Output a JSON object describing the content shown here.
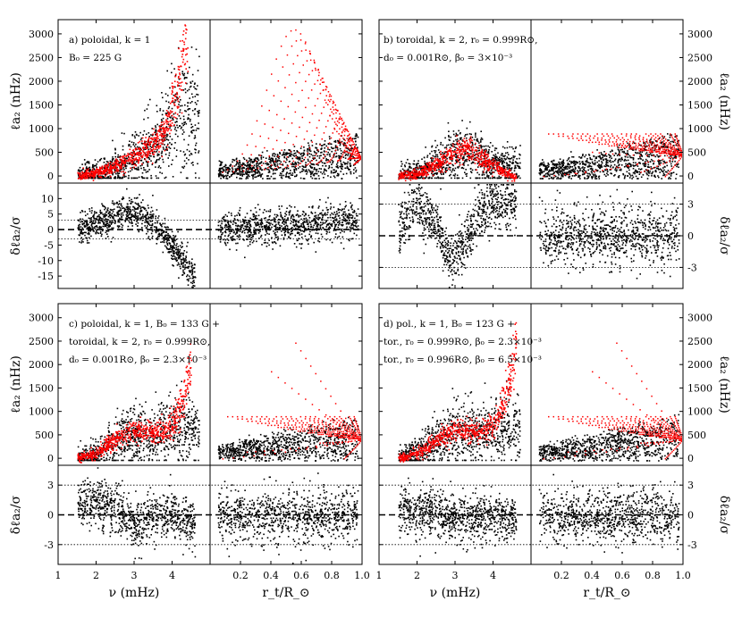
{
  "figure": {
    "x_tick_labels_nu": [
      "1",
      "2",
      "3",
      "4"
    ],
    "x_tick_labels_rt": [
      "0.2",
      "0.4",
      "0.6",
      "0.8",
      "1.0"
    ],
    "xlabel_nu": "ν (mHz)",
    "xlabel_rt": "r_t/R_⊙",
    "ylabel_top": "ℓa₂ (nHz)",
    "ylabel_bottom": "δℓa₂/σ"
  },
  "chart_data": [
    {
      "type": "scatter",
      "panel": "a",
      "annotation_lines": [
        "a) poloidal, k = 1",
        "B₀ = 225 G"
      ],
      "top": {
        "ylabel": "ℓa₂ (nHz)",
        "yticks": [
          0,
          500,
          1000,
          1500,
          2000,
          2500,
          3000
        ],
        "ylim": [
          -150,
          3300
        ],
        "xlim_nu": [
          1,
          5
        ],
        "xlim_rt": [
          0,
          1
        ],
        "series": [
          {
            "name": "",
            "color": "#000000"
          },
          {
            "name": "",
            "color": "#ff0000"
          }
        ],
        "model_nu_curve": {
          "x": [
            1.5,
            2.0,
            2.5,
            3.0,
            3.4,
            3.8,
            4.0,
            4.2,
            4.4
          ],
          "y": [
            10,
            80,
            220,
            420,
            620,
            950,
            1400,
            2200,
            3150
          ]
        }
      },
      "bottom": {
        "ylabel": "δℓa₂/σ",
        "yticks": [
          -15,
          -10,
          -5,
          0,
          5,
          10
        ],
        "ylim": [
          -19,
          15
        ],
        "reference_lines": {
          "dashed": 0,
          "dotted": [
            3,
            -3
          ]
        },
        "residual_trend_nu": {
          "x": [
            1.5,
            2.0,
            2.5,
            3.0,
            3.5,
            4.0,
            4.5
          ],
          "y": [
            0,
            2,
            5,
            6,
            2,
            -5,
            -14
          ]
        }
      }
    },
    {
      "type": "scatter",
      "panel": "b",
      "annotation_lines": [
        "b) toroidal, k = 2, r₀ = 0.999R⊙,",
        "d₀ = 0.001R⊙, β₀ = 3×10⁻³"
      ],
      "top": {
        "ylabel": "ℓa₂ (nHz)",
        "yticks": [
          0,
          500,
          1000,
          1500,
          2000,
          2500,
          3000
        ],
        "ylim": [
          -150,
          3300
        ],
        "xlim_nu": [
          1,
          5
        ],
        "xlim_rt": [
          0,
          1
        ],
        "model_nu_curve": {
          "x": [
            1.5,
            2.0,
            2.5,
            3.0,
            3.3,
            3.8,
            4.3,
            4.6
          ],
          "y": [
            5,
            60,
            250,
            560,
            600,
            330,
            80,
            -30
          ]
        }
      },
      "bottom": {
        "ylabel": "δℓa₂/σ",
        "yticks": [
          -3,
          0,
          3
        ],
        "ylim": [
          -5,
          5
        ],
        "reference_lines": {
          "dashed": 0,
          "dotted": [
            3,
            -3
          ]
        },
        "residual_trend_nu": {
          "x": [
            1.5,
            2.0,
            2.5,
            2.8,
            3.2,
            3.6,
            4.0,
            4.5
          ],
          "y": [
            1,
            3,
            1,
            -2,
            -1,
            2,
            3,
            3
          ]
        }
      }
    },
    {
      "type": "scatter",
      "panel": "c",
      "annotation_lines": [
        "c) poloidal, k = 1, B₀ = 133 G +",
        "toroidal, k = 2, r₀ = 0.999R⊙,",
        "d₀ = 0.001R⊙, β₀ = 2.3×10⁻³"
      ],
      "top": {
        "ylabel": "ℓa₂ (nHz)",
        "yticks": [
          0,
          500,
          1000,
          1500,
          2000,
          2500,
          3000
        ],
        "ylim": [
          -150,
          3300
        ],
        "xlim_nu": [
          1,
          5
        ],
        "xlim_rt": [
          0,
          1
        ],
        "model_nu_curve": {
          "x": [
            1.5,
            2.0,
            2.5,
            3.0,
            3.5,
            4.0,
            4.3,
            4.5
          ],
          "y": [
            10,
            120,
            420,
            620,
            560,
            700,
            1300,
            2100
          ]
        }
      },
      "bottom": {
        "ylabel": "δℓa₂/σ",
        "yticks": [
          -3,
          0,
          3
        ],
        "ylim": [
          -5,
          5
        ],
        "reference_lines": {
          "dashed": 0,
          "dotted": [
            3,
            -3
          ]
        },
        "residual_trend_nu": {
          "x": [
            1.5,
            2.0,
            2.5,
            3.0,
            3.5,
            4.0,
            4.5
          ],
          "y": [
            1,
            1.5,
            0.5,
            -1,
            0,
            0,
            -1
          ]
        }
      }
    },
    {
      "type": "scatter",
      "panel": "d",
      "annotation_lines": [
        "d) pol., k = 1, B₀ = 123 G +",
        "tor., r₀ = 0.999R⊙, β₀ = 2.3×10⁻³",
        "tor., r₀ = 0.996R⊙, β₀ = 6.5×10⁻³"
      ],
      "top": {
        "ylabel": "ℓa₂ (nHz)",
        "yticks": [
          0,
          500,
          1000,
          1500,
          2000,
          2500,
          3000
        ],
        "ylim": [
          -150,
          3300
        ],
        "xlim_nu": [
          1,
          5
        ],
        "xlim_rt": [
          0,
          1
        ],
        "model_nu_curve": {
          "x": [
            1.5,
            2.0,
            2.5,
            3.0,
            3.5,
            4.0,
            4.3,
            4.5,
            4.6
          ],
          "y": [
            10,
            110,
            400,
            620,
            560,
            700,
            1250,
            2000,
            2600
          ]
        }
      },
      "bottom": {
        "ylabel": "δℓa₂/σ",
        "yticks": [
          -3,
          0,
          3
        ],
        "ylim": [
          -5,
          5
        ],
        "reference_lines": {
          "dashed": 0,
          "dotted": [
            3,
            -3
          ]
        },
        "residual_trend_nu": {
          "x": [
            1.5,
            2.0,
            2.5,
            3.0,
            3.5,
            4.0,
            4.5
          ],
          "y": [
            0.5,
            0.5,
            0.5,
            -0.5,
            0,
            0,
            -0.5
          ]
        }
      }
    }
  ]
}
